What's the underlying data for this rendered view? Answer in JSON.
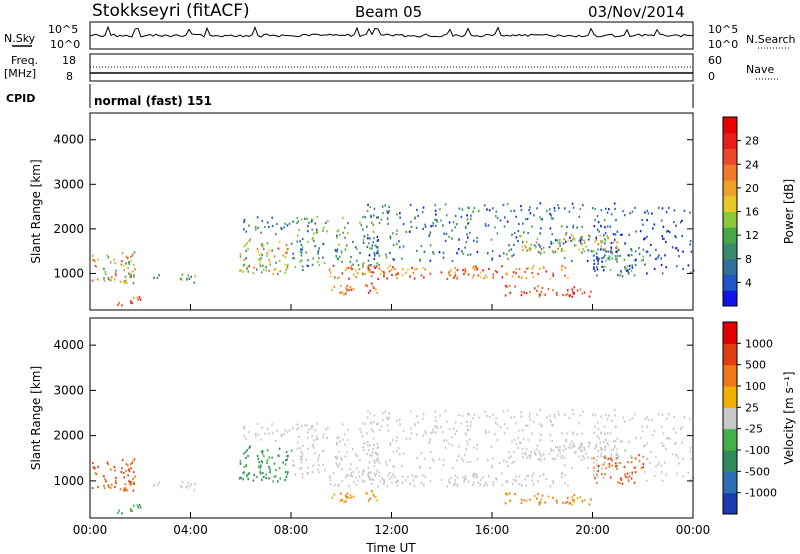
{
  "header": {
    "station": "Stokkseyri (fitACF)",
    "beam": "Beam 05",
    "date": "03/Nov/2014"
  },
  "top_panels": {
    "nsky_label": "N.Sky",
    "nsearch_label": "N.Search",
    "nsky_ticks": [
      "10^5",
      "10^0"
    ],
    "nsky_right_ticks": [
      "10^5",
      "10^0"
    ],
    "freq_label_line1": "Freq.",
    "freq_label_line2": "[MHz]",
    "freq_ticks": [
      "18",
      "8"
    ],
    "nave_label": "Nave",
    "nave_ticks": [
      "60",
      "0"
    ],
    "cpid_label": "CPID",
    "cpid_value": "normal (fast) 151"
  },
  "chart_data": [
    {
      "type": "heatmap",
      "panel": "power",
      "ylabel": "Slant Range [km]",
      "xlabel": "",
      "x_ticks": [
        "00:00",
        "04:00",
        "08:00",
        "12:00",
        "16:00",
        "20:00",
        "00:00"
      ],
      "y_ticks": [
        1000,
        2000,
        3000,
        4000
      ],
      "ylim": [
        180,
        4600
      ],
      "xlim_hours": [
        0,
        24
      ],
      "colorbar": {
        "label": "Power [dB]",
        "ticks": [
          "4",
          "8",
          "12",
          "16",
          "20",
          "24",
          "28"
        ],
        "colors": [
          "#1414e6",
          "#2255c8",
          "#2f6f9a",
          "#3a8a6e",
          "#48a848",
          "#8cc83c",
          "#e6c828",
          "#f0a028",
          "#f07828",
          "#e84a28",
          "#e61e1e",
          "#e60000"
        ]
      }
    },
    {
      "type": "heatmap",
      "panel": "velocity",
      "ylabel": "Slant Range [km]",
      "xlabel": "Time UT",
      "x_ticks": [
        "00:00",
        "04:00",
        "08:00",
        "12:00",
        "16:00",
        "20:00",
        "00:00"
      ],
      "y_ticks": [
        1000,
        2000,
        3000,
        4000
      ],
      "ylim": [
        180,
        4600
      ],
      "xlim_hours": [
        0,
        24
      ],
      "colorbar": {
        "label": "Velocity [m s⁻¹]",
        "ticks": [
          "1000",
          "500",
          "100",
          "25",
          "-25",
          "-100",
          "-500",
          "-1000"
        ],
        "colors": [
          "#1b3bb0",
          "#2e6fb4",
          "#2f8a5c",
          "#45b04a",
          "#c8c8c8",
          "#f0b000",
          "#f07818",
          "#e04010",
          "#e00000"
        ]
      }
    }
  ]
}
